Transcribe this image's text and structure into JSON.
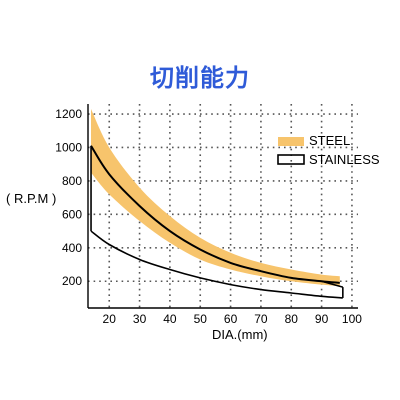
{
  "chart_data": {
    "type": "area",
    "title": "切削能力",
    "xlabel": "DIA.(mm)",
    "ylabel": "( R.P.M )",
    "xlim": [
      13,
      102
    ],
    "ylim": [
      40,
      1260
    ],
    "x_ticks": [
      20,
      30,
      40,
      50,
      60,
      70,
      80,
      90,
      100
    ],
    "y_ticks": [
      200,
      400,
      600,
      800,
      1000,
      1200
    ],
    "grid": true,
    "legend_position": "top-right",
    "colors": {
      "steel": "#f7c46c",
      "stainless": "#000000",
      "steel_curve": "#000000",
      "grid": "#555555"
    },
    "series": [
      {
        "name": "STEEL",
        "kind": "band",
        "x": [
          14,
          20,
          30,
          40,
          50,
          60,
          70,
          80,
          90,
          96
        ],
        "y_low": [
          850,
          720,
          560,
          430,
          330,
          270,
          230,
          200,
          180,
          170
        ],
        "y_high": [
          1230,
          1000,
          760,
          590,
          460,
          370,
          310,
          270,
          240,
          230
        ],
        "y_mid": [
          1010,
          840,
          650,
          500,
          390,
          310,
          260,
          220,
          200,
          190
        ]
      },
      {
        "name": "STAINLESS",
        "kind": "outline",
        "x_upper": [
          14,
          20,
          30,
          40,
          50,
          60,
          70,
          80,
          90,
          97
        ],
        "y_upper": [
          1010,
          840,
          650,
          500,
          390,
          310,
          260,
          220,
          200,
          165
        ],
        "x_lower": [
          14,
          20,
          30,
          40,
          50,
          60,
          70,
          80,
          90,
          97
        ],
        "y_lower": [
          500,
          420,
          330,
          270,
          220,
          180,
          150,
          130,
          110,
          100
        ]
      }
    ]
  }
}
